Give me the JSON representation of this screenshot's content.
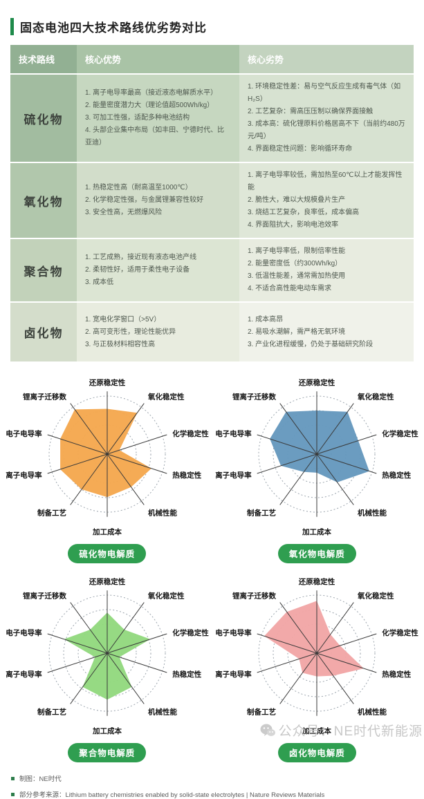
{
  "title": "固态电池四大技术路线优劣势对比",
  "table": {
    "headers": [
      "技术路线",
      "核心优势",
      "核心劣势"
    ],
    "rows": [
      {
        "route": "硫化物",
        "advantages": [
          "离子电导率最高（接近液态电解质水平）",
          "能量密度潜力大（理论值超500Wh/kg）",
          "可加工性强，适配多种电池结构",
          "头部企业集中布局（如丰田、宁德时代、比亚迪）"
        ],
        "disadvantages": [
          "环境稳定性差：易与空气反应生成有毒气体（如H₂S）",
          "工艺复杂：需高压压制以确保界面接触",
          "成本高：硫化锂原料价格居高不下（当前约480万元/吨）",
          "界面稳定性问题：影响循环寿命"
        ]
      },
      {
        "route": "氧化物",
        "advantages": [
          "热稳定性高（耐高温至1000℃）",
          "化学稳定性强，与金属锂兼容性较好",
          "安全性高，无燃爆风险"
        ],
        "disadvantages": [
          "离子电导率较低，需加热至60℃以上才能发挥性能",
          "脆性大，难以大规模叠片生产",
          "烧结工艺复杂，良率低，成本偏高",
          "界面阻抗大，影响电池效率"
        ]
      },
      {
        "route": "聚合物",
        "advantages": [
          "工艺成熟，接近现有液态电池产线",
          "柔韧性好，适用于柔性电子设备",
          "成本低"
        ],
        "disadvantages": [
          "离子电导率低，限制倍率性能",
          "能量密度低（约300Wh/kg）",
          "低温性能差，通常需加热使用",
          "不适合高性能电动车需求"
        ]
      },
      {
        "route": "卤化物",
        "advantages": [
          "宽电化学窗口（>5V）",
          "高可变形性，理论性能优异",
          "与正极材料相容性高"
        ],
        "disadvantages": [
          "成本高昂",
          "易吸水潮解，需严格无氧环境",
          "产业化进程缓慢，仍处于基础研究阶段"
        ]
      }
    ]
  },
  "chart_data": [
    {
      "type": "radar",
      "title": "硫化物电解质",
      "categories": [
        "还原稳定性",
        "氧化稳定性",
        "化学稳定性",
        "热稳定性",
        "机械性能",
        "加工成本",
        "制备工艺",
        "离子电导率",
        "电子电导率",
        "锂离子迁移数"
      ],
      "values": [
        0.78,
        0.88,
        0.22,
        0.8,
        0.7,
        0.74,
        0.75,
        0.85,
        0.85,
        0.95
      ],
      "value_range": [
        0,
        1
      ],
      "rings": 4,
      "fill": "#F5A84E"
    },
    {
      "type": "radar",
      "title": "氧化物电解质",
      "categories": [
        "还原稳定性",
        "氧化稳定性",
        "化学稳定性",
        "热稳定性",
        "机械性能",
        "加工成本",
        "制备工艺",
        "离子电导率",
        "电子电导率",
        "锂离子迁移数"
      ],
      "values": [
        0.75,
        0.9,
        0.75,
        0.95,
        0.6,
        0.32,
        0.38,
        0.65,
        0.85,
        0.9
      ],
      "value_range": [
        0,
        1
      ],
      "rings": 4,
      "fill": "#6598BD"
    },
    {
      "type": "radar",
      "title": "聚合物电解质",
      "categories": [
        "还原稳定性",
        "氧化稳定性",
        "化学稳定性",
        "热稳定性",
        "机械性能",
        "加工成本",
        "制备工艺",
        "离子电导率",
        "电子电导率",
        "锂离子迁移数"
      ],
      "values": [
        0.7,
        0.5,
        0.78,
        0.22,
        0.72,
        0.8,
        0.72,
        0.22,
        0.78,
        0.5
      ],
      "value_range": [
        0,
        1
      ],
      "rings": 4,
      "fill": "#92D87E"
    },
    {
      "type": "radar",
      "title": "卤化物电解质",
      "categories": [
        "还原稳定性",
        "氧化稳定性",
        "化学稳定性",
        "热稳定性",
        "机械性能",
        "加工成本",
        "制备工艺",
        "离子电导率",
        "电子电导率",
        "锂离子迁移数"
      ],
      "values": [
        0.9,
        0.4,
        0.42,
        0.85,
        0.48,
        0.4,
        0.42,
        0.32,
        0.95,
        0.88
      ],
      "value_range": [
        0,
        1
      ],
      "rings": 4,
      "fill": "#F1A6A6"
    }
  ],
  "footer": {
    "items": [
      "制图：NE时代",
      "部分参考来源：Lithium battery chemistries enabled by solid-state electrolytes | Nature Reviews Materials"
    ]
  },
  "watermark": {
    "text": "公众号：NE时代新能源"
  },
  "colors": {
    "accent_green": "#1E8A4A",
    "badge_green": "#2F9E50",
    "footer_bullet_green": "#2E7D4B",
    "sulfide_fill": "#F5A84E",
    "oxide_fill": "#6598BD",
    "polymer_fill": "#92D87E",
    "halide_fill": "#F1A6A6"
  }
}
